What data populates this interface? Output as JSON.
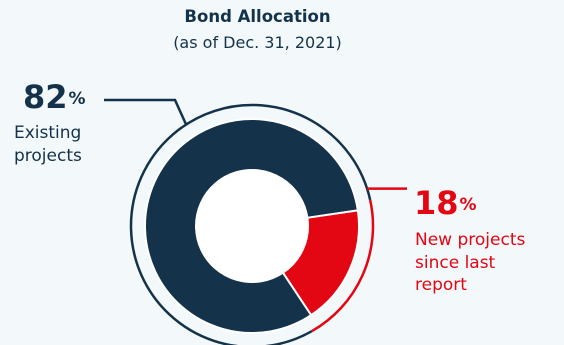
{
  "title": "Bond Allocation",
  "subtitle": "(as of Dec. 31, 2021)",
  "chart_data": {
    "type": "pie",
    "title": "Bond Allocation",
    "subtitle": "(as of Dec. 31, 2021)",
    "categories": [
      "Existing projects",
      "New projects since last report"
    ],
    "values": [
      82,
      18
    ],
    "unit": "%",
    "colors": [
      "#14334a",
      "#e30613"
    ],
    "donut": true
  },
  "callouts": [
    {
      "value": "82",
      "symbol": "%",
      "lines": [
        "Existing",
        "projects"
      ],
      "color": "#14334a"
    },
    {
      "value": "18",
      "symbol": "%",
      "lines": [
        "New projects",
        "since last",
        "report"
      ],
      "color": "#e30613"
    }
  ]
}
